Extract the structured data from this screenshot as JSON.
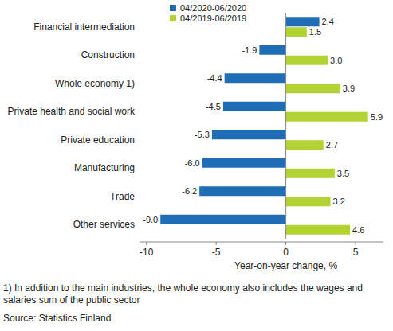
{
  "chart_data": {
    "type": "bar",
    "orientation": "horizontal",
    "categories": [
      "Financial intermediation",
      "Construction",
      "Whole economy 1)",
      "Private health and social work",
      "Private education",
      "Manufacturing",
      "Trade",
      "Other services"
    ],
    "series": [
      {
        "name": "04/2020-06/2020",
        "color": "#1f6db5",
        "values": [
          2.4,
          -1.9,
          -4.4,
          -4.5,
          -5.3,
          -6.0,
          -6.2,
          -9.0
        ],
        "value_labels": [
          "2.4",
          "-1.9",
          "-4.4",
          "-4.5",
          "-5.3",
          "-6.0",
          "-6.2",
          "-9.0"
        ]
      },
      {
        "name": "04/2019-06/2019",
        "color": "#b3d335",
        "values": [
          1.5,
          3.0,
          3.9,
          5.9,
          2.7,
          3.5,
          3.2,
          4.6
        ],
        "value_labels": [
          "1.5",
          "3.0",
          "3.9",
          "5.9",
          "2.7",
          "3.5",
          "3.2",
          "4.6"
        ]
      }
    ],
    "x_label": "Year-on-year change, %",
    "xlim": [
      -10.5,
      7
    ],
    "xticks": [
      -10,
      -5,
      0,
      5
    ],
    "grid": false,
    "legend": "top",
    "data_labels": true,
    "footnote": "1) In addition to the main industries, the whole economy also includes the wages and salaries sum of the public sector",
    "source": "Source: Statistics Finland"
  }
}
